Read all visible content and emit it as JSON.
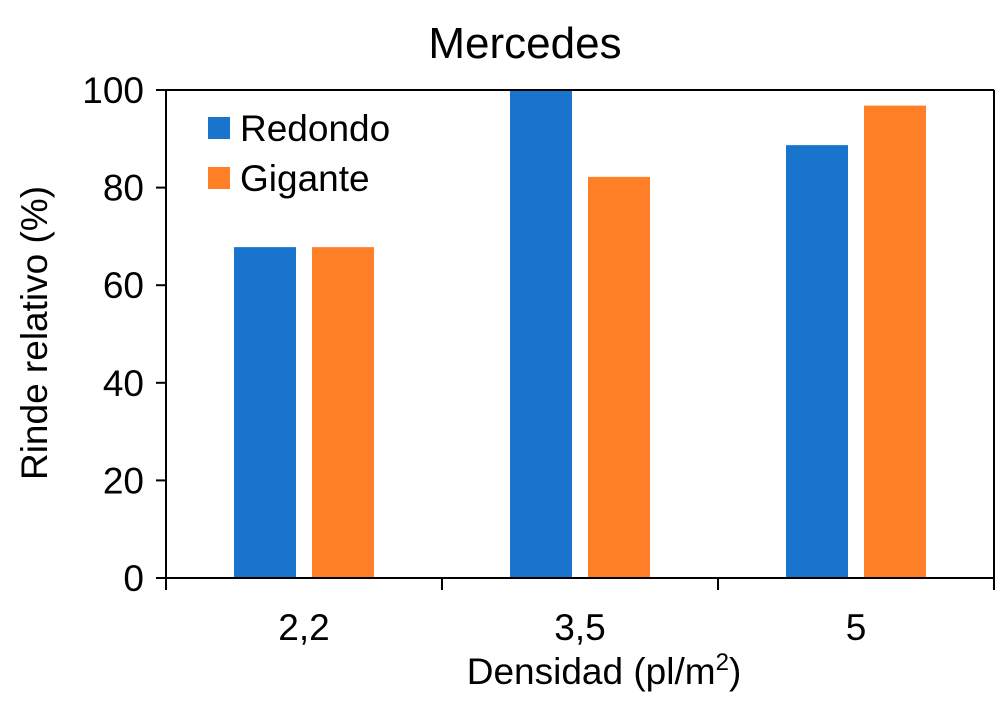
{
  "chart_data": {
    "type": "bar",
    "title": "Mercedes",
    "xlabel": "Densidad (pl/m",
    "xlabel_sup": "2",
    "xlabel_close": ")",
    "ylabel": "Rinde relativo (%)",
    "categories": [
      "2,2",
      "3,5",
      "5"
    ],
    "series": [
      {
        "name": "Redondo",
        "color": "#1874CD",
        "values": [
          67.8,
          100,
          88.7
        ]
      },
      {
        "name": "Gigante",
        "color": "#FF7F27",
        "values": [
          67.8,
          82.2,
          96.8
        ]
      }
    ],
    "ylim": [
      0,
      100
    ],
    "yticks": [
      "0",
      "20",
      "40",
      "60",
      "80",
      "100"
    ],
    "grid": false,
    "legend": "top-left"
  }
}
